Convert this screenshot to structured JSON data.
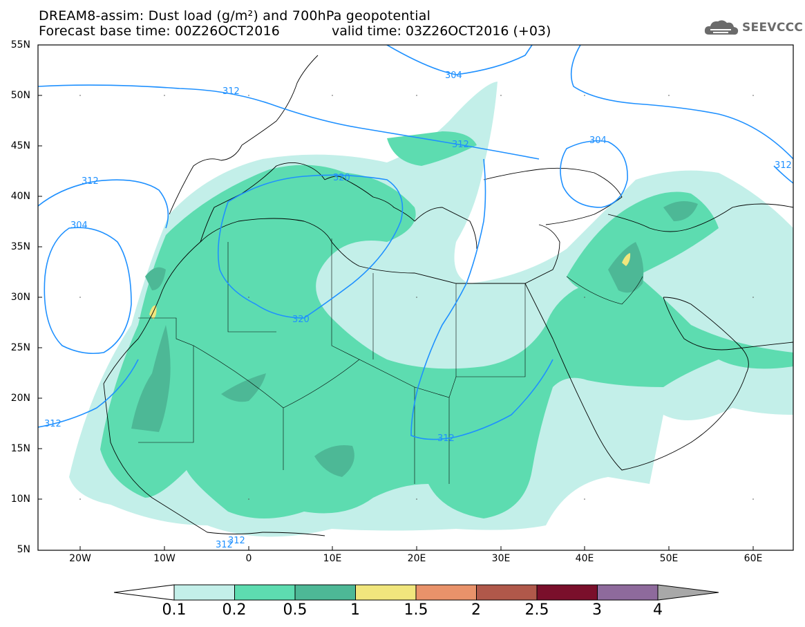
{
  "header": {
    "title_line1": "DREAM8-assim: Dust load (g/m²) and 700hPa geopotential",
    "title_line2": "Forecast base time: 00Z26OCT2016",
    "valid_time": "valid time: 03Z26OCT2016 (+03)",
    "logo_text": "SEEVCCC"
  },
  "map": {
    "lat_labels": [
      "55N",
      "50N",
      "45N",
      "40N",
      "35N",
      "30N",
      "25N",
      "20N",
      "15N",
      "10N",
      "5N"
    ],
    "lon_labels": [
      "20W",
      "10W",
      "0",
      "10E",
      "20E",
      "30E",
      "40E",
      "50E",
      "60E"
    ],
    "contour_labels": [
      "312",
      "304",
      "312",
      "320",
      "312",
      "304",
      "312",
      "320",
      "304",
      "312",
      "312",
      "312",
      "312"
    ]
  },
  "legend": {
    "labels": [
      "0.1",
      "0.2",
      "0.5",
      "1",
      "1.5",
      "2",
      "2.5",
      "3",
      "4"
    ],
    "colors": [
      "#c3efe9",
      "#5ddcb0",
      "#4db896",
      "#f1e67d",
      "#e9926a",
      "#b0584a",
      "#7a0f2b",
      "#8e6a9c",
      "#a8a8a8"
    ]
  }
}
